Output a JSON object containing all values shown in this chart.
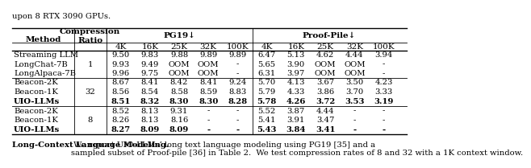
{
  "top_text": "upon 8 RTX 3090 GPUs.",
  "groups": [
    {
      "ratio": "1",
      "rows": [
        [
          "Streaming LLM",
          "9.50",
          "9.83",
          "9.88",
          "9.89",
          "9.89",
          "6.47",
          "5.13",
          "4.62",
          "4.44",
          "3.94"
        ],
        [
          "LongChat-7B",
          "9.93",
          "9.49",
          "OOM",
          "OOM",
          "-",
          "5.65",
          "3.90",
          "OOM",
          "OOM",
          "-"
        ],
        [
          "LongAlpaca-7B",
          "9.96",
          "9.75",
          "OOM",
          "OOM",
          "-",
          "6.31",
          "3.97",
          "OOM",
          "OOM",
          "-"
        ]
      ]
    },
    {
      "ratio": "32",
      "rows": [
        [
          "Beacon-2K",
          "8.67",
          "8.41",
          "8.42",
          "8.41",
          "9.24",
          "5.70",
          "4.13",
          "3.67",
          "3.50",
          "4.23"
        ],
        [
          "Beacon-1K",
          "8.56",
          "8.54",
          "8.58",
          "8.59",
          "8.83",
          "5.79",
          "4.33",
          "3.86",
          "3.70",
          "3.33"
        ],
        [
          "UIO-LLMs",
          "8.51",
          "8.32",
          "8.30",
          "8.30",
          "8.28",
          "5.78",
          "4.26",
          "3.72",
          "3.53",
          "3.19"
        ]
      ]
    },
    {
      "ratio": "8",
      "rows": [
        [
          "Beacon-2K",
          "8.52",
          "8.13",
          "9.31",
          "-",
          "-",
          "5.52",
          "3.87",
          "4.44",
          "-",
          "-"
        ],
        [
          "Beacon-1K",
          "8.26",
          "8.13",
          "8.16",
          "-",
          "-",
          "5.41",
          "3.91",
          "3.47",
          "-",
          "-"
        ],
        [
          "UIO-LLMs",
          "8.27",
          "8.09",
          "8.09",
          "-",
          "-",
          "5.43",
          "3.84",
          "3.41",
          "-",
          "-"
        ]
      ]
    }
  ],
  "caption_bold": "Long-Context Language Modeling.",
  "caption_normal": " We report UIO-LLMs’ long text language modeling using PG19 [35] and a\nsampled subset of Proof-pile [36] in Table 2.  We test compression rates of 8 and 32 with a 1K context window.",
  "bold_methods": [
    "UIO-LLMs"
  ],
  "col_labels": [
    "4K",
    "16K",
    "25K",
    "32K",
    "100K"
  ],
  "pg19_label": "PG19↓",
  "pp_label": "Proof-Pile↓",
  "method_label": "Method",
  "ratio_label": "Compression\nRatio"
}
